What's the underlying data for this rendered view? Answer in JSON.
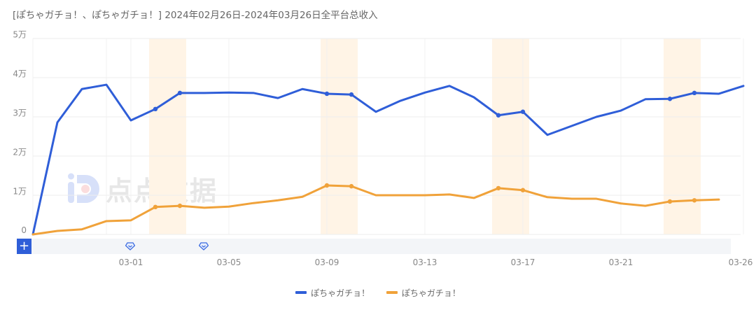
{
  "header": {
    "title": "[ぽちゃガチョ！、ぽちゃガチョ！] 2024年02月26日-2024年03月26日全平台总收入"
  },
  "watermark": {
    "text": "点点数据",
    "icon": "diandian-logo-icon"
  },
  "zoom_control": {
    "plus_label": "+",
    "handles": [
      "slider-handle-start",
      "slider-handle-end"
    ]
  },
  "y_ticks": [
    "5万",
    "4万",
    "3万",
    "2万",
    "1万",
    "0"
  ],
  "x_ticks": [
    "03-01",
    "03-05",
    "03-09",
    "03-13",
    "03-17",
    "03-21",
    "03-26"
  ],
  "legend": [
    {
      "label": "ぽちゃガチョ！",
      "color": "#2f5ed8"
    },
    {
      "label": "ぽちゃガチョ！",
      "color": "#f0a23a"
    }
  ],
  "chart_data": {
    "type": "line",
    "title": "[ぽちゃガチョ！、ぽちゃガチョ！] 2024年02月26日-2024年03月26日全平台总收入",
    "xlabel": "",
    "ylabel": "",
    "ylim": [
      0,
      50000
    ],
    "grid": true,
    "legend_position": "bottom",
    "x": [
      "02-26",
      "02-27",
      "02-28",
      "02-29",
      "03-01",
      "03-02",
      "03-03",
      "03-04",
      "03-05",
      "03-06",
      "03-07",
      "03-08",
      "03-09",
      "03-10",
      "03-11",
      "03-12",
      "03-13",
      "03-14",
      "03-15",
      "03-16",
      "03-17",
      "03-18",
      "03-19",
      "03-20",
      "03-21",
      "03-22",
      "03-23",
      "03-24",
      "03-25",
      "03-26"
    ],
    "weekend_bands": [
      [
        "03-02",
        "03-03"
      ],
      [
        "03-09",
        "03-10"
      ],
      [
        "03-16",
        "03-17"
      ],
      [
        "03-23",
        "03-24"
      ]
    ],
    "series": [
      {
        "name": "ぽちゃガチョ！",
        "color": "#2f5ed8",
        "values": [
          0,
          28600,
          37100,
          38200,
          29100,
          32000,
          36100,
          36100,
          36200,
          36100,
          34800,
          37100,
          35900,
          35700,
          31300,
          34100,
          36200,
          37900,
          35000,
          30400,
          31300,
          25400,
          27700,
          30000,
          31600,
          34500,
          34600,
          36100,
          35900,
          37900
        ]
      },
      {
        "name": "ぽちゃガチョ！",
        "color": "#f0a23a",
        "values": [
          0,
          900,
          1300,
          3400,
          3600,
          7000,
          7300,
          6800,
          7100,
          8000,
          8700,
          9600,
          12500,
          12300,
          10000,
          10000,
          10000,
          10200,
          9300,
          11800,
          11300,
          9500,
          9100,
          9100,
          7900,
          7300,
          8400,
          8700,
          8900,
          null
        ]
      }
    ]
  }
}
